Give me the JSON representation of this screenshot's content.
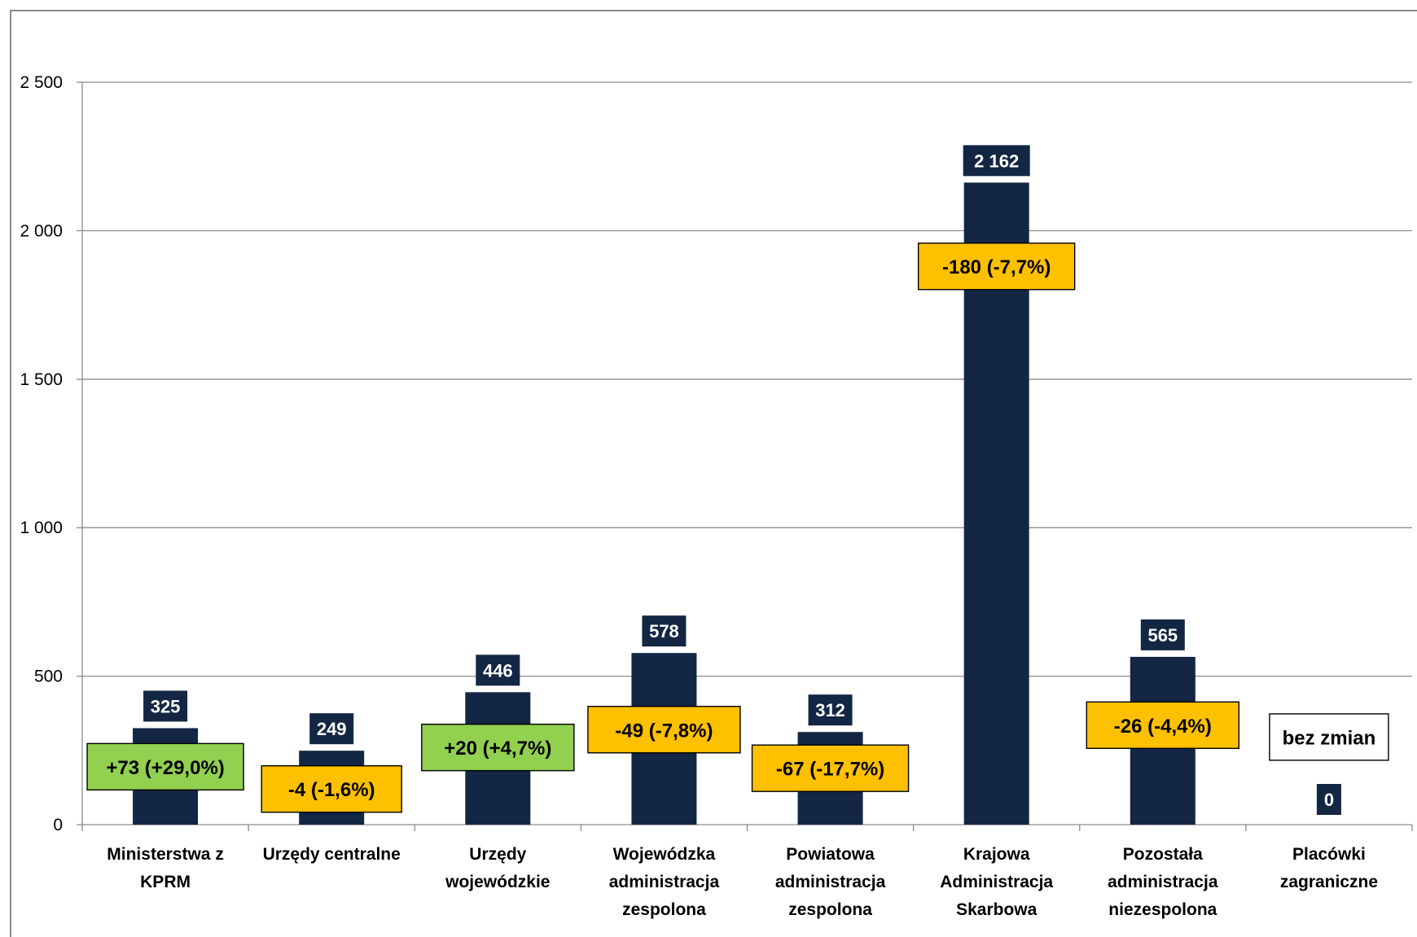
{
  "chart_data": {
    "type": "bar",
    "categories": [
      [
        "Ministerstwa z",
        "KPRM"
      ],
      [
        "Urzędy centralne"
      ],
      [
        "Urzędy",
        "wojewódzkie"
      ],
      [
        "Wojewódzka",
        "administracja",
        "zespolona"
      ],
      [
        "Powiatowa",
        "administracja",
        "zespolona"
      ],
      [
        "Krajowa",
        "Administracja",
        "Skarbowa"
      ],
      [
        "Pozostała",
        "administracja",
        "niezespolona"
      ],
      [
        "Placówki",
        "zagraniczne"
      ]
    ],
    "values": [
      325,
      249,
      446,
      578,
      312,
      2162,
      565,
      0
    ],
    "value_labels": [
      "325",
      "249",
      "446",
      "578",
      "312",
      "2 162",
      "565",
      "0"
    ],
    "change_labels": [
      "+73 (+29,0%)",
      "-4 (-1,6%)",
      "+20 (+4,7%)",
      "-49 (-7,8%)",
      "-67 (-17,7%)",
      "-180 (-7,7%)",
      "-26 (-4,4%)",
      "bez zmian"
    ],
    "change_kind": [
      "increase",
      "decrease",
      "increase",
      "decrease",
      "decrease",
      "decrease",
      "decrease",
      "none"
    ],
    "change_box_center_values": [
      195,
      120,
      260,
      320,
      190,
      1880,
      335,
      295
    ],
    "y_ticks": [
      0,
      500,
      1000,
      1500,
      2000,
      2500
    ],
    "y_tick_labels": [
      "0",
      "500",
      "1 000",
      "1 500",
      "2 000",
      "2 500"
    ],
    "ylim": [
      0,
      2500
    ],
    "grid": true,
    "legend": "none",
    "title": "",
    "xlabel": "",
    "ylabel": "",
    "colors": {
      "bar": "#132744",
      "value_label_bg": "#132744",
      "value_label_text": "#ffffff",
      "increase": "#92d050",
      "decrease": "#ffc000",
      "none": "#ffffff",
      "gridline": "#8c8c8c",
      "text": "#000000"
    }
  }
}
